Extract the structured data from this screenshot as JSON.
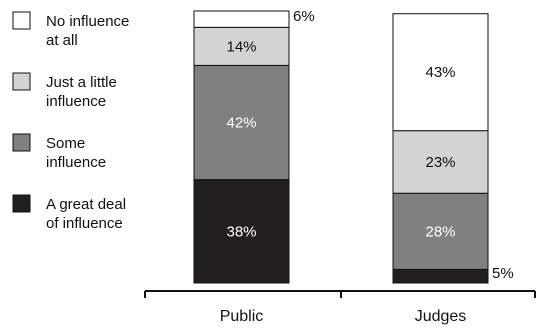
{
  "chart_data": {
    "type": "bar",
    "stacked": true,
    "percent": true,
    "categories": [
      "Public",
      "Judges"
    ],
    "series": [
      {
        "name": "A great deal of influence",
        "legend_lines": [
          "A great deal",
          "of influence"
        ],
        "color": "#231f20",
        "values": [
          38,
          5
        ],
        "labels": [
          "38%",
          "5%"
        ]
      },
      {
        "name": "Some influence",
        "legend_lines": [
          "Some",
          "influence"
        ],
        "color": "#808080",
        "values": [
          42,
          28
        ],
        "labels": [
          "42%",
          "28%"
        ]
      },
      {
        "name": "Just a little influence",
        "legend_lines": [
          "Just a little",
          "influence"
        ],
        "color": "#d3d3d3",
        "values": [
          14,
          23
        ],
        "labels": [
          "14%",
          "23%"
        ]
      },
      {
        "name": "No influence at all",
        "legend_lines": [
          "No influence",
          "at all"
        ],
        "color": "#ffffff",
        "values": [
          6,
          43
        ],
        "labels": [
          "6%",
          "43%"
        ]
      }
    ],
    "ylim": [
      0,
      100
    ],
    "title": "",
    "xlabel": "",
    "ylabel": "",
    "legend_position": "left",
    "grid": false
  }
}
